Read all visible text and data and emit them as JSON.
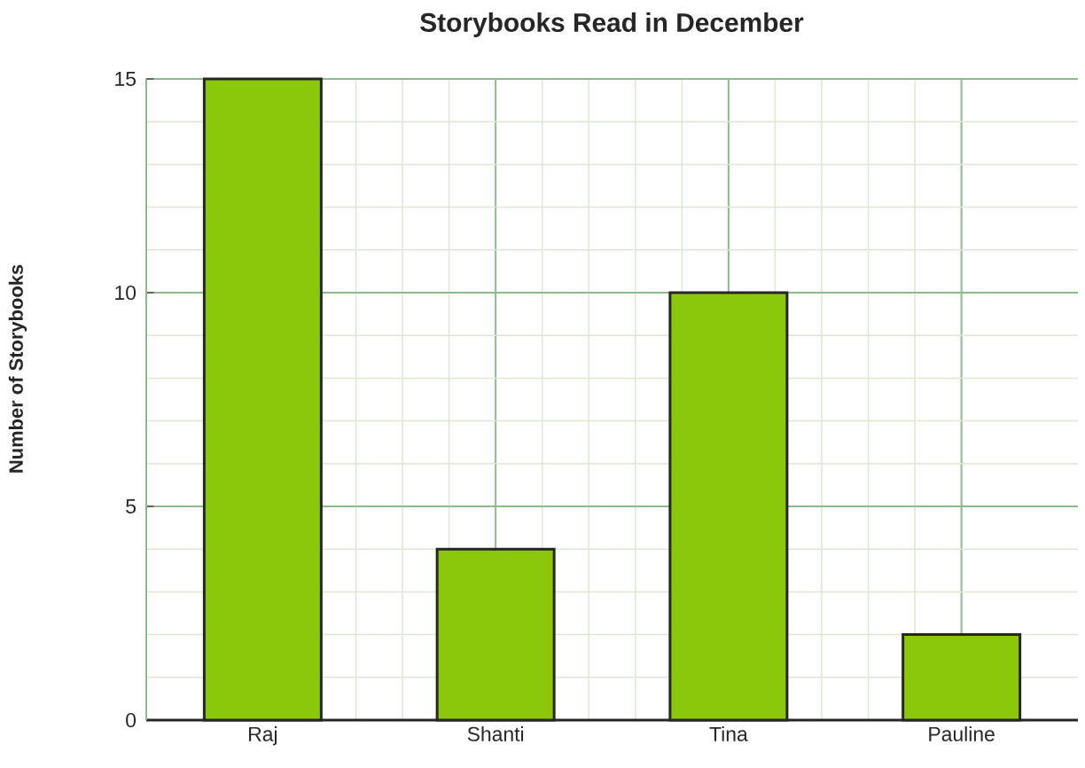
{
  "chart_data": {
    "type": "bar",
    "title": "Storybooks Read in December",
    "ylabel": "Number of Storybooks",
    "categories": [
      "Raj",
      "Shanti",
      "Tina",
      "Pauline"
    ],
    "values": [
      15,
      4,
      10,
      2
    ],
    "color": "#8bc70a",
    "ylim": [
      0,
      15
    ],
    "yticks": [
      0,
      5,
      10,
      15
    ],
    "grid": true
  }
}
